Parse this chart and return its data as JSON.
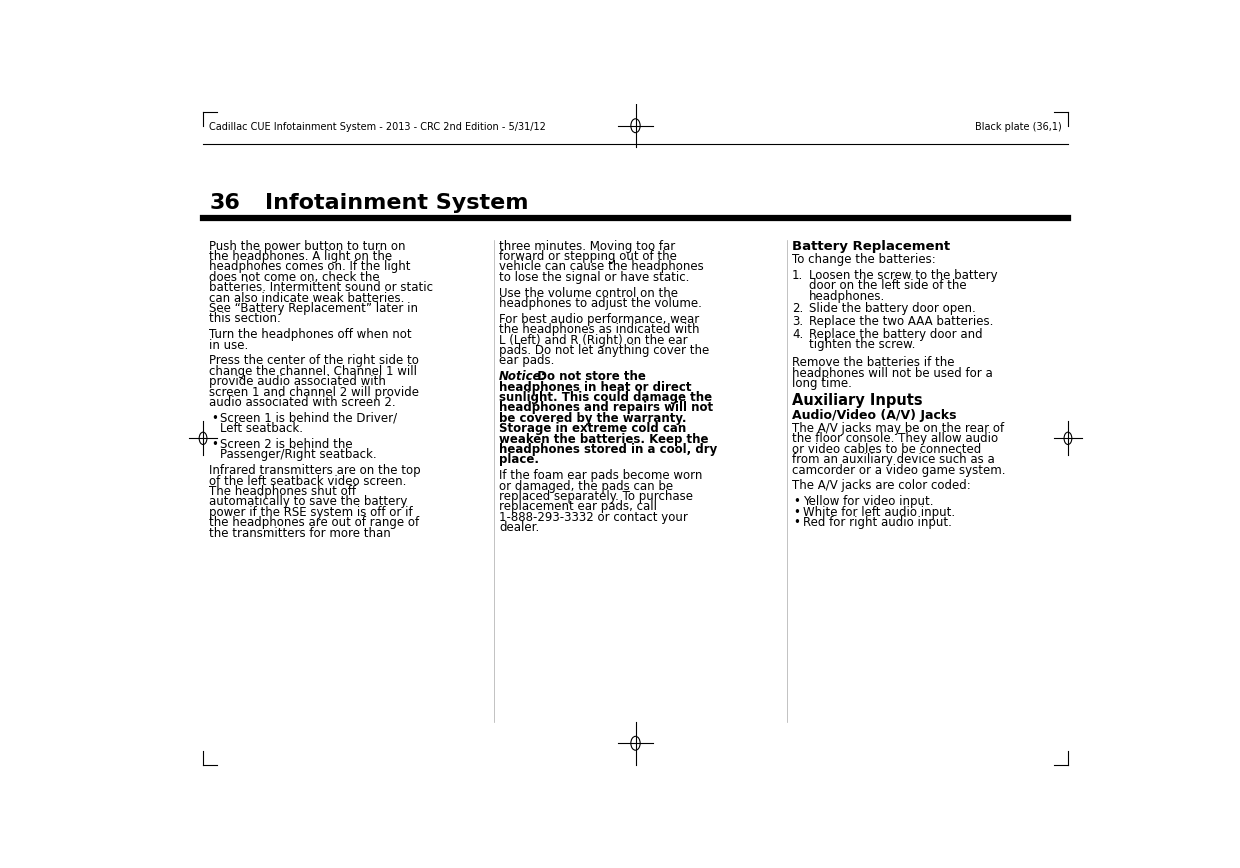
{
  "bg_color": "#ffffff",
  "header_left": "Cadillac CUE Infotainment System - 2013 - CRC 2nd Edition - 5/31/12",
  "header_right": "Black plate (36,1)",
  "chapter_number": "36",
  "chapter_title": "Infotainment System",
  "col1_text": [
    "Push the power button to turn on",
    "the headphones. A light on the",
    "headphones comes on. If the light",
    "does not come on, check the",
    "batteries. Intermittent sound or static",
    "can also indicate weak batteries.",
    "See “Battery Replacement” later in",
    "this section.",
    "",
    "Turn the headphones off when not",
    "in use.",
    "",
    "Press the center of the right side to",
    "change the channel. Channel 1 will",
    "provide audio associated with",
    "screen 1 and channel 2 will provide",
    "audio associated with screen 2.",
    "",
    "bullet:Screen 1 is behind the Driver/",
    "indent:Left seatback.",
    "",
    "bullet:Screen 2 is behind the",
    "indent:Passenger/Right seatback.",
    "",
    "Infrared transmitters are on the top",
    "of the left seatback video screen.",
    "The headphones shut off",
    "automatically to save the battery",
    "power if the RSE system is off or if",
    "the headphones are out of range of",
    "the transmitters for more than"
  ],
  "col2_text": [
    "three minutes. Moving too far",
    "forward or stepping out of the",
    "vehicle can cause the headphones",
    "to lose the signal or have static.",
    "",
    "Use the volume control on the",
    "headphones to adjust the volume.",
    "",
    "For best audio performance, wear",
    "the headphones as indicated with",
    "L (Left) and R (Right) on the ear",
    "pads. Do not let anything cover the",
    "ear pads.",
    "",
    "notice_start:Notice:  Do not store the",
    "headphones in heat or direct",
    "sunlight. This could damage the",
    "headphones and repairs will not",
    "be covered by the warranty.",
    "Storage in extreme cold can",
    "weaken the batteries. Keep the",
    "headphones stored in a cool, dry",
    "notice_end:place.",
    "",
    "If the foam ear pads become worn",
    "or damaged, the pads can be",
    "replaced separately. To purchase",
    "replacement ear pads, call",
    "1-888-293-3332 or contact your",
    "dealer."
  ],
  "col3_sections": [
    {
      "type": "heading",
      "text": "Battery Replacement"
    },
    {
      "type": "para",
      "text": "To change the batteries:"
    },
    {
      "type": "numbered",
      "items": [
        "Loosen the screw to the battery\ndoor on the left side of the\nheadphones.",
        "Slide the battery door open.",
        "Replace the two AAA batteries.",
        "Replace the battery door and\ntighten the screw."
      ]
    },
    {
      "type": "para_gap",
      "text": "Remove the batteries if the\nheadphones will not be used for a\nlong time."
    },
    {
      "type": "heading2",
      "text": "Auxiliary Inputs"
    },
    {
      "type": "subheading",
      "text": "Audio/Video (A/V) Jacks"
    },
    {
      "type": "para",
      "text": "The A/V jacks may be on the rear of\nthe floor console. They allow audio\nor video cables to be connected\nfrom an auxiliary device such as a\ncamcorder or a video game system."
    },
    {
      "type": "para",
      "text": "The A/V jacks are color coded:"
    },
    {
      "type": "bullets",
      "items": [
        "Yellow for video input.",
        "White for left audio input.",
        "Red for right audio input."
      ]
    }
  ]
}
